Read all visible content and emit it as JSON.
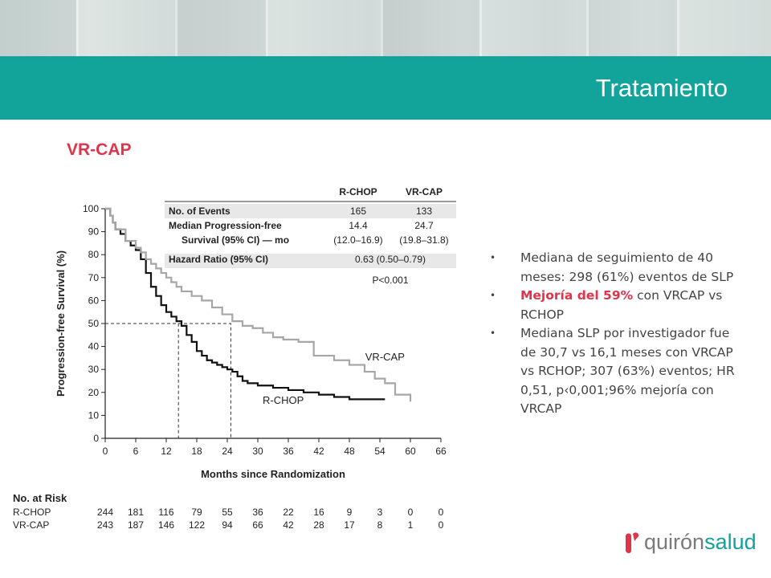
{
  "slide": {
    "title": "Tratamiento",
    "section_title": "VR-CAP",
    "brand_color": "#12a39b",
    "accent_color": "#e0344a"
  },
  "bullets": [
    {
      "text_before": "",
      "highlight": "",
      "text": "Mediana de seguimiento de 40 meses: 298 (61%) eventos de SLP"
    },
    {
      "text_before": "",
      "highlight": "Mejoría del 59%",
      "text": " con VRCAP vs RCHOP"
    },
    {
      "text_before": "",
      "highlight": "",
      "text": "Mediana SLP por investigador fue de 30,7 vs 16,1 meses con VRCAP vs RCHOP; 307 (63%) eventos; HR 0,51, p‹0,001;96% mejoría con VRCAP"
    }
  ],
  "logo": {
    "part1": "quirón",
    "part2": "salud"
  },
  "chart_data": {
    "type": "line",
    "xlabel": "Months since Randomization",
    "ylabel": "Progression-free Survival (%)",
    "xlim": [
      0,
      66
    ],
    "ylim": [
      0,
      100
    ],
    "xticks": [
      0,
      6,
      12,
      18,
      24,
      30,
      36,
      42,
      48,
      54,
      60,
      66
    ],
    "yticks": [
      0,
      10,
      20,
      30,
      40,
      50,
      60,
      70,
      80,
      90,
      100
    ],
    "series": [
      {
        "name": "R-CHOP",
        "color": "#111111",
        "step": true,
        "x": [
          0,
          1,
          1.5,
          2,
          3,
          4,
          5,
          6,
          7,
          8,
          9,
          10,
          11,
          12,
          13,
          14,
          15,
          16,
          17,
          18,
          19,
          20,
          21,
          22,
          23,
          24,
          25,
          26,
          27,
          28,
          30,
          33,
          36,
          39,
          42,
          45,
          48,
          51,
          55
        ],
        "y": [
          100,
          97,
          94,
          91,
          89,
          86,
          84,
          82,
          78,
          72,
          66,
          62,
          58,
          55,
          53,
          51,
          49,
          45,
          42,
          38,
          36,
          34,
          33,
          32,
          31,
          30,
          29,
          27,
          25,
          24,
          23,
          22,
          21,
          20,
          19,
          18,
          17,
          17,
          17
        ]
      },
      {
        "name": "VR-CAP",
        "color": "#a6a6a6",
        "step": true,
        "x": [
          0,
          1,
          1.5,
          2,
          4,
          6,
          7,
          8,
          9,
          10,
          11,
          12,
          13,
          14,
          15,
          17,
          19,
          21,
          23,
          25,
          27,
          29,
          31,
          33,
          35,
          38,
          41,
          45,
          48,
          51,
          53,
          55,
          57,
          60
        ],
        "y": [
          100,
          97,
          94,
          91,
          86,
          83,
          81,
          78,
          76,
          74,
          72,
          70,
          68,
          66,
          64,
          62,
          60,
          57,
          54,
          51,
          49,
          48,
          46,
          44,
          43,
          42,
          36,
          34,
          32,
          29,
          26,
          24,
          19,
          16
        ]
      }
    ],
    "median_markers": [
      {
        "series": "R-CHOP",
        "x": 14.4,
        "y": 50
      },
      {
        "series": "VR-CAP",
        "x": 24.7,
        "y": 50
      }
    ],
    "curve_labels": [
      {
        "text": "VR-CAP",
        "x": 55,
        "y": 34
      },
      {
        "text": "R-CHOP",
        "x": 35,
        "y": 15
      }
    ],
    "stats_table": {
      "headers": [
        "R-CHOP",
        "VR-CAP"
      ],
      "rows": [
        {
          "label": "No. of Events",
          "label2": "",
          "values": [
            "165",
            "133"
          ],
          "values2": [
            "",
            ""
          ],
          "shaded": true
        },
        {
          "label": "Median Progression-free",
          "label2": "Survival (95% CI) — mo",
          "values": [
            "14.4",
            "24.7"
          ],
          "values2": [
            "(12.0–16.9)",
            "(19.8–31.8)"
          ],
          "shaded": false
        },
        {
          "label": "Hazard Ratio (95% CI)",
          "label2": "",
          "values": [
            "0.63 (0.50–0.79)",
            ""
          ],
          "values2": [
            "",
            ""
          ],
          "shaded": true
        }
      ],
      "p_value": "P<0.001"
    },
    "at_risk": {
      "title": "No. at Risk",
      "rows": [
        {
          "name": "R-CHOP",
          "values": [
            "244",
            "181",
            "116",
            "79",
            "55",
            "36",
            "22",
            "16",
            "9",
            "3",
            "0",
            "0"
          ]
        },
        {
          "name": "VR-CAP",
          "values": [
            "243",
            "187",
            "146",
            "122",
            "94",
            "66",
            "42",
            "28",
            "17",
            "8",
            "1",
            "0"
          ]
        }
      ]
    }
  }
}
